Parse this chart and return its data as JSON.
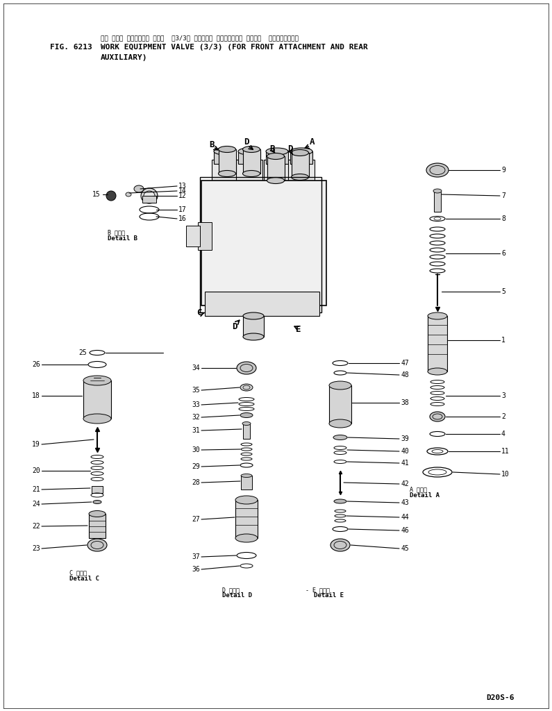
{
  "bg_color": "#ffffff",
  "fig_number": "FIG. 6213",
  "title_jp": "サギ ヨウキ コントロール バルブ  （3/3） （フロント アタッチメント オヨビー  リヤーブジョウ）",
  "title_en1": "WORK EQUIPMENT VALVE (3/3) (FOR FRONT ATTACHMENT AND REAR",
  "title_en2": "AUXILIARY)",
  "model": "D20S-6",
  "line_color": "#000000",
  "text_color": "#000000"
}
